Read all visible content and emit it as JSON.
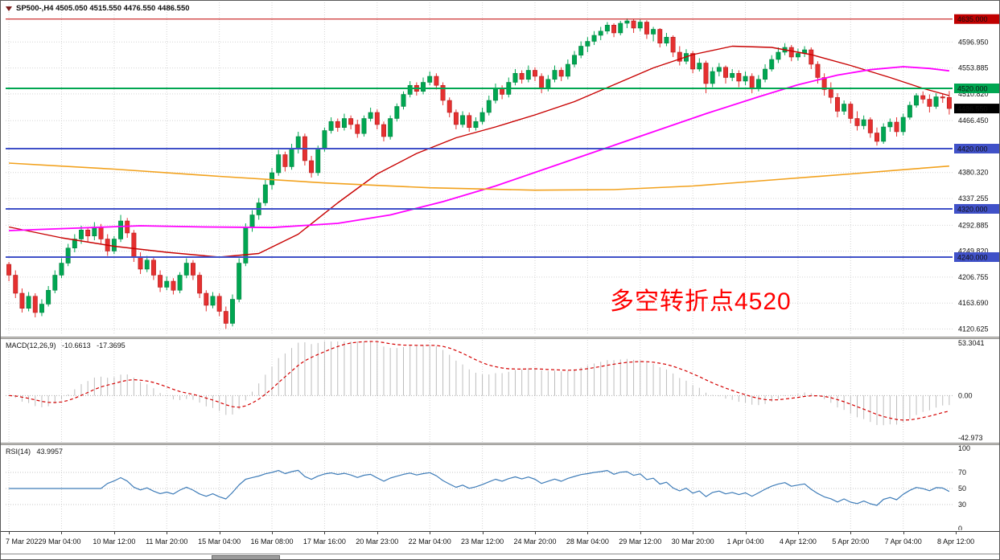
{
  "header": {
    "title": "SP500-,H4 4505.050 4515.550 4476.550 4486.550"
  },
  "colors": {
    "bull": "#00A651",
    "bull_border": "#007A3C",
    "bear": "#E53030",
    "bear_border": "#A81414",
    "grid": "#D4D4D4",
    "line_red": "#C00000",
    "line_green": "#00A651",
    "line_blue": "#4051C8",
    "tag_black": "#000000",
    "ma_fast": "#C80000",
    "ma_mid": "#FF00FF",
    "ma_slow": "#F2A11C",
    "macd_hist": "#BDBDBD",
    "macd_signal": "#D40000",
    "rsi_line": "#3E7CB8",
    "level_dots": "#C4C4C4"
  },
  "chart_data": {
    "type": "candlestick",
    "symbol": "SP500-",
    "timeframe": "H4",
    "title": "SP500-,H4 4505.050 4515.550 4476.550 4486.550",
    "ohlc_current": {
      "open": "4505.050",
      "high": "4515.550",
      "low": "4476.550",
      "close": "4486.550"
    },
    "current_price": 4486.55,
    "ylim": [
      4116,
      4649.3
    ],
    "annotation": {
      "text": "多空转折点4520",
      "color": "#FF0000"
    },
    "x_labels": [
      "7 Mar 2022",
      "9 Mar 04:00",
      "10 Mar 12:00",
      "11 Mar 20:00",
      "15 Mar 04:00",
      "16 Mar 08:00",
      "17 Mar 16:00",
      "20 Mar 23:00",
      "22 Mar 04:00",
      "23 Mar 12:00",
      "24 Mar 20:00",
      "28 Mar 04:00",
      "29 Mar 12:00",
      "30 Mar 20:00",
      "1 Apr 04:00",
      "4 Apr 12:00",
      "5 Apr 20:00",
      "7 Apr 04:00",
      "8 Apr 12:00"
    ],
    "candles_per_x_label": 8,
    "y_grid_labels": [
      {
        "text": "4596.950",
        "value": 4596.95
      },
      {
        "text": "4553.885",
        "value": 4553.885
      },
      {
        "text": "4510.820",
        "value": 4510.82
      },
      {
        "text": "4466.450",
        "value": 4466.45
      },
      {
        "text": "4380.320",
        "value": 4380.32
      },
      {
        "text": "4337.255",
        "value": 4337.255
      },
      {
        "text": "4292.885",
        "value": 4292.885
      },
      {
        "text": "4249.820",
        "value": 4249.82
      },
      {
        "text": "4206.755",
        "value": 4206.755
      },
      {
        "text": "4163.690",
        "value": 4163.69
      },
      {
        "text": "4120.625",
        "value": 4120.625
      }
    ],
    "y_tags": [
      {
        "text": "4635.000",
        "value": 4635.0,
        "bg": "#C00000"
      },
      {
        "text": "4520.000",
        "value": 4520.0,
        "bg": "#00A651"
      },
      {
        "text": "4486.550",
        "value": 4486.55,
        "bg": "#000000"
      },
      {
        "text": "4420.000",
        "value": 4420.0,
        "bg": "#4051C8"
      },
      {
        "text": "4320.000",
        "value": 4320.0,
        "bg": "#4051C8"
      },
      {
        "text": "4240.000",
        "value": 4240.0,
        "bg": "#4051C8"
      }
    ],
    "horizontal_lines": [
      {
        "price": 4635.0,
        "color": "#C00000",
        "width": 1
      },
      {
        "price": 4520.0,
        "color": "#00A651",
        "width": 2
      },
      {
        "price": 4420.0,
        "color": "#4051C8",
        "width": 2
      },
      {
        "price": 4320.0,
        "color": "#4051C8",
        "width": 2
      },
      {
        "price": 4240.0,
        "color": "#4051C8",
        "width": 2
      }
    ],
    "moving_averages": [
      {
        "name": "ma-fast",
        "color": "#C80000",
        "width": 1.4,
        "points": [
          [
            0,
            4290
          ],
          [
            8,
            4272
          ],
          [
            16,
            4258
          ],
          [
            24,
            4248
          ],
          [
            32,
            4240
          ],
          [
            38,
            4246
          ],
          [
            44,
            4278
          ],
          [
            50,
            4330
          ],
          [
            56,
            4378
          ],
          [
            62,
            4412
          ],
          [
            68,
            4438
          ],
          [
            74,
            4456
          ],
          [
            80,
            4476
          ],
          [
            86,
            4498
          ],
          [
            92,
            4526
          ],
          [
            98,
            4554
          ],
          [
            104,
            4576
          ],
          [
            110,
            4590
          ],
          [
            116,
            4588
          ],
          [
            122,
            4576
          ],
          [
            128,
            4558
          ],
          [
            134,
            4538
          ],
          [
            139,
            4520
          ],
          [
            143,
            4508
          ]
        ]
      },
      {
        "name": "ma-medium",
        "color": "#FF00FF",
        "width": 1.8,
        "points": [
          [
            0,
            4284
          ],
          [
            10,
            4288
          ],
          [
            20,
            4292
          ],
          [
            30,
            4290
          ],
          [
            40,
            4289
          ],
          [
            50,
            4296
          ],
          [
            58,
            4310
          ],
          [
            66,
            4332
          ],
          [
            74,
            4358
          ],
          [
            82,
            4388
          ],
          [
            90,
            4418
          ],
          [
            98,
            4448
          ],
          [
            106,
            4478
          ],
          [
            114,
            4506
          ],
          [
            120,
            4526
          ],
          [
            126,
            4542
          ],
          [
            131,
            4551
          ],
          [
            136,
            4556
          ],
          [
            140,
            4553
          ],
          [
            143,
            4549
          ]
        ]
      },
      {
        "name": "ma-slow",
        "color": "#F2A11C",
        "width": 1.6,
        "points": [
          [
            0,
            4396
          ],
          [
            16,
            4386
          ],
          [
            32,
            4374
          ],
          [
            48,
            4363
          ],
          [
            64,
            4355
          ],
          [
            80,
            4351
          ],
          [
            92,
            4352
          ],
          [
            104,
            4358
          ],
          [
            116,
            4368
          ],
          [
            128,
            4378
          ],
          [
            136,
            4385
          ],
          [
            143,
            4391
          ]
        ]
      }
    ],
    "candles": [
      [
        4228,
        4232,
        4200,
        4210
      ],
      [
        4210,
        4218,
        4172,
        4180
      ],
      [
        4180,
        4188,
        4148,
        4155
      ],
      [
        4155,
        4182,
        4150,
        4175
      ],
      [
        4175,
        4180,
        4140,
        4148
      ],
      [
        4148,
        4170,
        4142,
        4162
      ],
      [
        4162,
        4192,
        4158,
        4185
      ],
      [
        4185,
        4218,
        4180,
        4210
      ],
      [
        4210,
        4238,
        4205,
        4230
      ],
      [
        4230,
        4262,
        4225,
        4255
      ],
      [
        4255,
        4278,
        4248,
        4270
      ],
      [
        4270,
        4292,
        4262,
        4285
      ],
      [
        4285,
        4290,
        4265,
        4275
      ],
      [
        4275,
        4298,
        4268,
        4290
      ],
      [
        4290,
        4295,
        4262,
        4270
      ],
      [
        4270,
        4278,
        4242,
        4250
      ],
      [
        4250,
        4275,
        4245,
        4270
      ],
      [
        4270,
        4310,
        4265,
        4300
      ],
      [
        4300,
        4305,
        4272,
        4280
      ],
      [
        4280,
        4285,
        4232,
        4240
      ],
      [
        4240,
        4248,
        4212,
        4220
      ],
      [
        4220,
        4242,
        4215,
        4235
      ],
      [
        4235,
        4240,
        4202,
        4210
      ],
      [
        4210,
        4218,
        4182,
        4190
      ],
      [
        4190,
        4208,
        4185,
        4200
      ],
      [
        4200,
        4205,
        4178,
        4185
      ],
      [
        4185,
        4215,
        4180,
        4210
      ],
      [
        4210,
        4238,
        4205,
        4230
      ],
      [
        4230,
        4235,
        4202,
        4210
      ],
      [
        4210,
        4215,
        4172,
        4180
      ],
      [
        4180,
        4185,
        4150,
        4160
      ],
      [
        4160,
        4182,
        4155,
        4175
      ],
      [
        4175,
        4180,
        4142,
        4150
      ],
      [
        4150,
        4158,
        4121,
        4130
      ],
      [
        4130,
        4178,
        4125,
        4170
      ],
      [
        4170,
        4238,
        4165,
        4230
      ],
      [
        4230,
        4296,
        4225,
        4290
      ],
      [
        4290,
        4318,
        4282,
        4310
      ],
      [
        4310,
        4338,
        4302,
        4330
      ],
      [
        4330,
        4368,
        4325,
        4360
      ],
      [
        4360,
        4388,
        4352,
        4380
      ],
      [
        4380,
        4418,
        4375,
        4410
      ],
      [
        4410,
        4415,
        4382,
        4390
      ],
      [
        4390,
        4428,
        4385,
        4420
      ],
      [
        4420,
        4448,
        4412,
        4440
      ],
      [
        4440,
        4445,
        4392,
        4400
      ],
      [
        4400,
        4408,
        4372,
        4380
      ],
      [
        4380,
        4425,
        4375,
        4420
      ],
      [
        4420,
        4455,
        4415,
        4450
      ],
      [
        4450,
        4472,
        4445,
        4465
      ],
      [
        4465,
        4470,
        4448,
        4455
      ],
      [
        4455,
        4478,
        4450,
        4470
      ],
      [
        4470,
        4475,
        4452,
        4460
      ],
      [
        4460,
        4468,
        4438,
        4445
      ],
      [
        4445,
        4475,
        4440,
        4470
      ],
      [
        4470,
        4488,
        4465,
        4480
      ],
      [
        4480,
        4485,
        4452,
        4460
      ],
      [
        4460,
        4465,
        4432,
        4440
      ],
      [
        4440,
        4475,
        4435,
        4470
      ],
      [
        4470,
        4495,
        4465,
        4490
      ],
      [
        4490,
        4515,
        4485,
        4510
      ],
      [
        4510,
        4532,
        4505,
        4525
      ],
      [
        4525,
        4530,
        4508,
        4515
      ],
      [
        4515,
        4538,
        4510,
        4530
      ],
      [
        4530,
        4548,
        4525,
        4540
      ],
      [
        4540,
        4545,
        4518,
        4525
      ],
      [
        4525,
        4530,
        4492,
        4500
      ],
      [
        4500,
        4505,
        4472,
        4480
      ],
      [
        4480,
        4485,
        4452,
        4460
      ],
      [
        4460,
        4482,
        4455,
        4475
      ],
      [
        4475,
        4480,
        4448,
        4455
      ],
      [
        4455,
        4472,
        4450,
        4465
      ],
      [
        4465,
        4488,
        4460,
        4480
      ],
      [
        4480,
        4508,
        4475,
        4500
      ],
      [
        4500,
        4528,
        4495,
        4520
      ],
      [
        4520,
        4525,
        4502,
        4510
      ],
      [
        4510,
        4538,
        4505,
        4530
      ],
      [
        4530,
        4552,
        4525,
        4545
      ],
      [
        4545,
        4550,
        4528,
        4535
      ],
      [
        4535,
        4558,
        4530,
        4550
      ],
      [
        4550,
        4555,
        4532,
        4540
      ],
      [
        4540,
        4545,
        4512,
        4520
      ],
      [
        4520,
        4542,
        4515,
        4535
      ],
      [
        4535,
        4558,
        4530,
        4550
      ],
      [
        4550,
        4555,
        4532,
        4540
      ],
      [
        4540,
        4568,
        4535,
        4560
      ],
      [
        4560,
        4582,
        4555,
        4575
      ],
      [
        4575,
        4598,
        4570,
        4590
      ],
      [
        4590,
        4605,
        4580,
        4598
      ],
      [
        4598,
        4615,
        4592,
        4608
      ],
      [
        4608,
        4622,
        4600,
        4615
      ],
      [
        4615,
        4630,
        4610,
        4625
      ],
      [
        4625,
        4628,
        4605,
        4612
      ],
      [
        4612,
        4632,
        4608,
        4628
      ],
      [
        4628,
        4636,
        4620,
        4632
      ],
      [
        4632,
        4635,
        4612,
        4620
      ],
      [
        4620,
        4634,
        4615,
        4630
      ],
      [
        4630,
        4633,
        4602,
        4610
      ],
      [
        4610,
        4622,
        4598,
        4618
      ],
      [
        4618,
        4620,
        4588,
        4595
      ],
      [
        4595,
        4612,
        4590,
        4605
      ],
      [
        4605,
        4608,
        4572,
        4580
      ],
      [
        4580,
        4590,
        4558,
        4565
      ],
      [
        4565,
        4585,
        4560,
        4578
      ],
      [
        4578,
        4582,
        4545,
        4552
      ],
      [
        4552,
        4570,
        4548,
        4562
      ],
      [
        4562,
        4566,
        4512,
        4528
      ],
      [
        4528,
        4555,
        4522,
        4548
      ],
      [
        4548,
        4562,
        4540,
        4555
      ],
      [
        4555,
        4558,
        4528,
        4538
      ],
      [
        4538,
        4552,
        4532,
        4545
      ],
      [
        4545,
        4550,
        4522,
        4532
      ],
      [
        4532,
        4548,
        4525,
        4540
      ],
      [
        4540,
        4545,
        4512,
        4520
      ],
      [
        4520,
        4542,
        4515,
        4535
      ],
      [
        4535,
        4560,
        4530,
        4552
      ],
      [
        4552,
        4575,
        4548,
        4568
      ],
      [
        4568,
        4588,
        4562,
        4580
      ],
      [
        4580,
        4595,
        4575,
        4588
      ],
      [
        4588,
        4592,
        4565,
        4572
      ],
      [
        4572,
        4586,
        4566,
        4578
      ],
      [
        4578,
        4590,
        4572,
        4584
      ],
      [
        4584,
        4588,
        4552,
        4560
      ],
      [
        4560,
        4565,
        4528,
        4538
      ],
      [
        4538,
        4545,
        4508,
        4518
      ],
      [
        4518,
        4530,
        4495,
        4505
      ],
      [
        4505,
        4512,
        4472,
        4482
      ],
      [
        4482,
        4500,
        4476,
        4494
      ],
      [
        4494,
        4498,
        4462,
        4470
      ],
      [
        4470,
        4482,
        4450,
        4458
      ],
      [
        4458,
        4475,
        4452,
        4468
      ],
      [
        4468,
        4472,
        4438,
        4446
      ],
      [
        4446,
        4455,
        4425,
        4432
      ],
      [
        4432,
        4462,
        4428,
        4456
      ],
      [
        4456,
        4470,
        4448,
        4464
      ],
      [
        4464,
        4472,
        4440,
        4448
      ],
      [
        4448,
        4478,
        4442,
        4472
      ],
      [
        4472,
        4498,
        4468,
        4492
      ],
      [
        4492,
        4512,
        4488,
        4508
      ],
      [
        4508,
        4515,
        4495,
        4502
      ],
      [
        4502,
        4510,
        4480,
        4490
      ],
      [
        4490,
        4512,
        4486,
        4506
      ],
      [
        4506,
        4512,
        4496,
        4504
      ],
      [
        4505.05,
        4515.55,
        4476.55,
        4486.55
      ]
    ],
    "indicators": [
      {
        "type": "MACD",
        "params": [
          12,
          26,
          9
        ],
        "label": "MACD(12,26,9)",
        "display_main": "-10.6613",
        "display_signal": "-17.3695",
        "axis": [
          {
            "text": "53.3041",
            "value": 53.3041
          },
          {
            "text": "0.00",
            "value": 0
          },
          {
            "text": "-42.973",
            "value": -42.973
          }
        ]
      },
      {
        "type": "RSI",
        "params": [
          14
        ],
        "label": "RSI(14)",
        "display_value": "43.9957",
        "levels": [
          70,
          50,
          30
        ],
        "axis": [
          {
            "text": "100",
            "value": 100
          },
          {
            "text": "70",
            "value": 70
          },
          {
            "text": "50",
            "value": 50
          },
          {
            "text": "30",
            "value": 30
          },
          {
            "text": "0",
            "value": 0
          }
        ]
      }
    ]
  }
}
